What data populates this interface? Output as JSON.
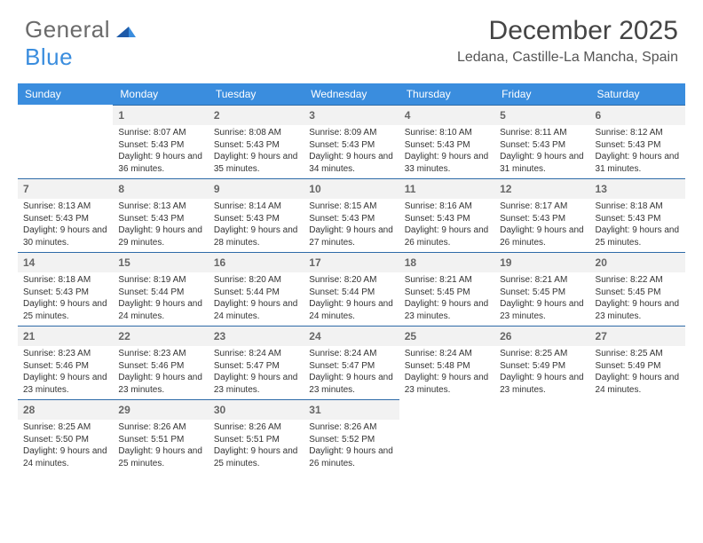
{
  "brand": {
    "part1": "General",
    "part2": "Blue"
  },
  "title": "December 2025",
  "location": "Ledana, Castille-La Mancha, Spain",
  "colors": {
    "header_bg": "#3a8dde",
    "header_text": "#ffffff",
    "daynum_bg": "#f2f2f2",
    "cell_border": "#2e6ba8",
    "text": "#333333",
    "logo_gray": "#6b6b6b",
    "logo_blue": "#3a8dde"
  },
  "typography": {
    "title_fontsize": 30,
    "location_fontsize": 16,
    "header_fontsize": 12,
    "daynum_fontsize": 12,
    "body_fontsize": 10
  },
  "weekdays": [
    "Sunday",
    "Monday",
    "Tuesday",
    "Wednesday",
    "Thursday",
    "Friday",
    "Saturday"
  ],
  "weeks": [
    [
      null,
      {
        "n": "1",
        "sr": "8:07 AM",
        "ss": "5:43 PM",
        "dl": "9 hours and 36 minutes."
      },
      {
        "n": "2",
        "sr": "8:08 AM",
        "ss": "5:43 PM",
        "dl": "9 hours and 35 minutes."
      },
      {
        "n": "3",
        "sr": "8:09 AM",
        "ss": "5:43 PM",
        "dl": "9 hours and 34 minutes."
      },
      {
        "n": "4",
        "sr": "8:10 AM",
        "ss": "5:43 PM",
        "dl": "9 hours and 33 minutes."
      },
      {
        "n": "5",
        "sr": "8:11 AM",
        "ss": "5:43 PM",
        "dl": "9 hours and 31 minutes."
      },
      {
        "n": "6",
        "sr": "8:12 AM",
        "ss": "5:43 PM",
        "dl": "9 hours and 31 minutes."
      }
    ],
    [
      {
        "n": "7",
        "sr": "8:13 AM",
        "ss": "5:43 PM",
        "dl": "9 hours and 30 minutes."
      },
      {
        "n": "8",
        "sr": "8:13 AM",
        "ss": "5:43 PM",
        "dl": "9 hours and 29 minutes."
      },
      {
        "n": "9",
        "sr": "8:14 AM",
        "ss": "5:43 PM",
        "dl": "9 hours and 28 minutes."
      },
      {
        "n": "10",
        "sr": "8:15 AM",
        "ss": "5:43 PM",
        "dl": "9 hours and 27 minutes."
      },
      {
        "n": "11",
        "sr": "8:16 AM",
        "ss": "5:43 PM",
        "dl": "9 hours and 26 minutes."
      },
      {
        "n": "12",
        "sr": "8:17 AM",
        "ss": "5:43 PM",
        "dl": "9 hours and 26 minutes."
      },
      {
        "n": "13",
        "sr": "8:18 AM",
        "ss": "5:43 PM",
        "dl": "9 hours and 25 minutes."
      }
    ],
    [
      {
        "n": "14",
        "sr": "8:18 AM",
        "ss": "5:43 PM",
        "dl": "9 hours and 25 minutes."
      },
      {
        "n": "15",
        "sr": "8:19 AM",
        "ss": "5:44 PM",
        "dl": "9 hours and 24 minutes."
      },
      {
        "n": "16",
        "sr": "8:20 AM",
        "ss": "5:44 PM",
        "dl": "9 hours and 24 minutes."
      },
      {
        "n": "17",
        "sr": "8:20 AM",
        "ss": "5:44 PM",
        "dl": "9 hours and 24 minutes."
      },
      {
        "n": "18",
        "sr": "8:21 AM",
        "ss": "5:45 PM",
        "dl": "9 hours and 23 minutes."
      },
      {
        "n": "19",
        "sr": "8:21 AM",
        "ss": "5:45 PM",
        "dl": "9 hours and 23 minutes."
      },
      {
        "n": "20",
        "sr": "8:22 AM",
        "ss": "5:45 PM",
        "dl": "9 hours and 23 minutes."
      }
    ],
    [
      {
        "n": "21",
        "sr": "8:23 AM",
        "ss": "5:46 PM",
        "dl": "9 hours and 23 minutes."
      },
      {
        "n": "22",
        "sr": "8:23 AM",
        "ss": "5:46 PM",
        "dl": "9 hours and 23 minutes."
      },
      {
        "n": "23",
        "sr": "8:24 AM",
        "ss": "5:47 PM",
        "dl": "9 hours and 23 minutes."
      },
      {
        "n": "24",
        "sr": "8:24 AM",
        "ss": "5:47 PM",
        "dl": "9 hours and 23 minutes."
      },
      {
        "n": "25",
        "sr": "8:24 AM",
        "ss": "5:48 PM",
        "dl": "9 hours and 23 minutes."
      },
      {
        "n": "26",
        "sr": "8:25 AM",
        "ss": "5:49 PM",
        "dl": "9 hours and 23 minutes."
      },
      {
        "n": "27",
        "sr": "8:25 AM",
        "ss": "5:49 PM",
        "dl": "9 hours and 24 minutes."
      }
    ],
    [
      {
        "n": "28",
        "sr": "8:25 AM",
        "ss": "5:50 PM",
        "dl": "9 hours and 24 minutes."
      },
      {
        "n": "29",
        "sr": "8:26 AM",
        "ss": "5:51 PM",
        "dl": "9 hours and 25 minutes."
      },
      {
        "n": "30",
        "sr": "8:26 AM",
        "ss": "5:51 PM",
        "dl": "9 hours and 25 minutes."
      },
      {
        "n": "31",
        "sr": "8:26 AM",
        "ss": "5:52 PM",
        "dl": "9 hours and 26 minutes."
      },
      null,
      null,
      null
    ]
  ],
  "labels": {
    "sunrise": "Sunrise:",
    "sunset": "Sunset:",
    "daylight": "Daylight:"
  }
}
